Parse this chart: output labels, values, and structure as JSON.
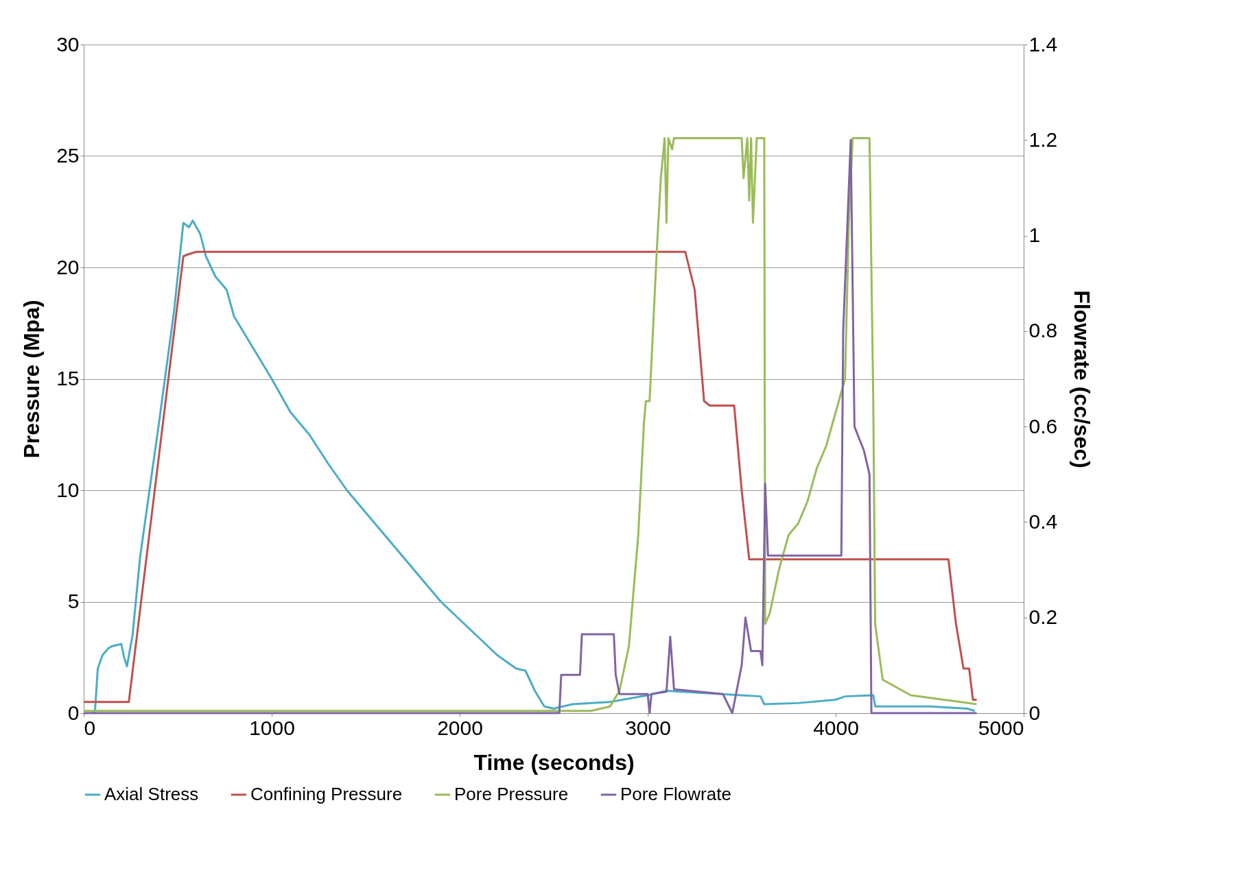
{
  "chart_data": {
    "type": "line",
    "xlabel": "Time (seconds)",
    "ylabel": "Pressure (Mpa)",
    "y2label": "Flowrate (cc/sec)",
    "xlim": [
      0,
      5000
    ],
    "xticks": [
      0,
      1000,
      2000,
      3000,
      4000,
      5000
    ],
    "ylim": [
      0,
      30
    ],
    "yticks": [
      0,
      5,
      10,
      15,
      20,
      25,
      30
    ],
    "y2lim": [
      0,
      1.4
    ],
    "y2ticks": [
      0,
      0.2,
      0.4,
      0.6,
      0.8,
      1,
      1.2,
      1.4
    ],
    "grid": "y",
    "legend": "bottom",
    "marker": "none",
    "line_style": "solid",
    "series": [
      {
        "name": "Axial Stress",
        "color": "#4bacc6",
        "x": [
          50,
          60,
          75,
          100,
          130,
          150,
          200,
          215,
          230,
          260,
          300,
          400,
          480,
          530,
          560,
          580,
          620,
          650,
          700,
          760,
          800,
          900,
          1000,
          1100,
          1200,
          1300,
          1400,
          1500,
          1600,
          1700,
          1800,
          1900,
          2000,
          2100,
          2200,
          2300,
          2350,
          2400,
          2450,
          2500,
          2600,
          2800,
          3000,
          3100,
          3300,
          3500,
          3600,
          3620,
          3800,
          4000,
          4050,
          4200,
          4210,
          4500,
          4700,
          4740
        ],
        "values": [
          0,
          0.1,
          2,
          2.6,
          2.9,
          3,
          3.1,
          2.5,
          2.1,
          3.5,
          7,
          13,
          18,
          22,
          21.8,
          22.1,
          21.5,
          20.5,
          19.6,
          19,
          17.8,
          16.4,
          15,
          13.5,
          12.5,
          11.2,
          10,
          9,
          8,
          7,
          6,
          5,
          4.2,
          3.4,
          2.6,
          2,
          1.9,
          1,
          0.3,
          0.2,
          0.4,
          0.5,
          0.8,
          1,
          0.9,
          0.8,
          0.75,
          0.4,
          0.45,
          0.6,
          0.75,
          0.8,
          0.3,
          0.3,
          0.2,
          0.1
        ]
      },
      {
        "name": "Confining Pressure",
        "color": "#c0504d",
        "x": [
          0,
          240,
          530,
          560,
          600,
          3200,
          3250,
          3300,
          3330,
          3460,
          3500,
          3540,
          4600,
          4640,
          4680,
          4710,
          4730,
          4750
        ],
        "values": [
          0.5,
          0.5,
          20.5,
          20.6,
          20.7,
          20.7,
          19,
          14,
          13.8,
          13.8,
          10,
          6.9,
          6.9,
          4,
          2,
          2,
          0.6,
          0.6
        ]
      },
      {
        "name": "Pore Pressure",
        "color": "#9bbb59",
        "x": [
          0,
          2700,
          2800,
          2850,
          2900,
          2950,
          2980,
          2990,
          3010,
          3050,
          3070,
          3090,
          3100,
          3110,
          3130,
          3140,
          3500,
          3510,
          3530,
          3540,
          3550,
          3560,
          3580,
          3620,
          3625,
          3650,
          3700,
          3750,
          3800,
          3850,
          3900,
          3950,
          4000,
          4050,
          4070,
          4090,
          4180,
          4200,
          4210,
          4250,
          4400,
          4750
        ],
        "values": [
          0.1,
          0.1,
          0.3,
          1,
          3,
          8,
          13,
          14,
          14,
          21,
          24,
          25.8,
          22,
          25.8,
          25.3,
          25.8,
          25.8,
          24,
          25.8,
          23,
          25.8,
          22,
          25.8,
          25.8,
          4,
          4.5,
          6.5,
          8,
          8.5,
          9.5,
          11,
          12,
          13.5,
          15,
          22,
          25.8,
          25.8,
          14,
          4,
          1.5,
          0.8,
          0.4
        ]
      },
      {
        "name": "Pore Flowrate",
        "color": "#8064a2",
        "axis": "y2",
        "x": [
          0,
          2530,
          2540,
          2640,
          2650,
          2820,
          2830,
          2850,
          3000,
          3010,
          3020,
          3100,
          3120,
          3140,
          3400,
          3450,
          3500,
          3520,
          3550,
          3600,
          3610,
          3625,
          3640,
          4030,
          4040,
          4070,
          4080,
          4100,
          4150,
          4180,
          4190,
          4750
        ],
        "values": [
          0,
          0,
          0.08,
          0.08,
          0.165,
          0.165,
          0.08,
          0.04,
          0.04,
          0,
          0.04,
          0.045,
          0.16,
          0.05,
          0.04,
          0,
          0.1,
          0.2,
          0.13,
          0.13,
          0.1,
          0.48,
          0.33,
          0.33,
          0.8,
          1.1,
          1.2,
          0.6,
          0.55,
          0.5,
          0,
          0
        ]
      }
    ]
  }
}
